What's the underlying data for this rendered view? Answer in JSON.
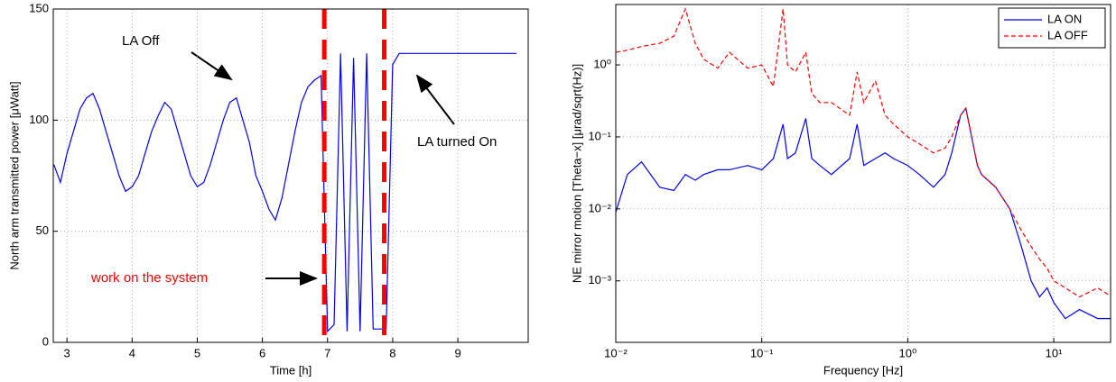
{
  "chart_data": [
    {
      "type": "line",
      "xlabel": "Time [h]",
      "ylabel": "North arm transmitted power [μWatt]",
      "xlim": [
        2.79,
        10.08
      ],
      "ylim": [
        0,
        150
      ],
      "xticks": [
        3,
        4,
        5,
        6,
        7,
        8,
        9
      ],
      "yticks": [
        0,
        50,
        100,
        150
      ],
      "grid": true,
      "color": "#0000ff",
      "x": [
        2.8,
        2.9,
        3.0,
        3.1,
        3.2,
        3.3,
        3.4,
        3.5,
        3.6,
        3.7,
        3.8,
        3.9,
        4.0,
        4.1,
        4.2,
        4.3,
        4.4,
        4.5,
        4.6,
        4.7,
        4.8,
        4.9,
        5.0,
        5.1,
        5.2,
        5.3,
        5.4,
        5.5,
        5.6,
        5.7,
        5.8,
        5.9,
        6.0,
        6.1,
        6.2,
        6.3,
        6.4,
        6.5,
        6.6,
        6.7,
        6.8,
        6.9,
        7.0,
        7.1,
        7.2,
        7.3,
        7.4,
        7.5,
        7.6,
        7.7,
        7.8,
        7.9,
        8.0,
        8.1,
        8.2,
        8.3,
        8.4,
        8.5,
        8.6,
        8.7,
        8.8,
        8.9,
        9.0,
        9.1,
        9.2,
        9.3,
        9.4,
        9.5,
        9.6,
        9.7,
        9.8,
        9.9
      ],
      "values": [
        80,
        72,
        85,
        95,
        105,
        110,
        112,
        105,
        95,
        85,
        75,
        68,
        70,
        75,
        85,
        95,
        102,
        108,
        105,
        95,
        85,
        75,
        70,
        72,
        80,
        90,
        100,
        108,
        110,
        100,
        90,
        75,
        68,
        60,
        55,
        65,
        80,
        95,
        108,
        115,
        118,
        120,
        5,
        8,
        130,
        5,
        128,
        5,
        130,
        6,
        6,
        6,
        125,
        130,
        130,
        130,
        130,
        130,
        130,
        130,
        130,
        130,
        130,
        130,
        130,
        130,
        130,
        130,
        130,
        130,
        130,
        130
      ],
      "vlines": [
        6.95,
        7.87
      ],
      "vline_color": "#ff0000",
      "annotations": [
        "LA Off",
        "LA turned On",
        "work on the system"
      ]
    },
    {
      "type": "line",
      "xlabel": "Frequency [Hz]",
      "ylabel": "NE mirror motion [Theta−x] [μrad/sqrt(Hz)]",
      "log_x": true,
      "log_y": true,
      "xlim": [
        0.01,
        24.5
      ],
      "ylim": [
        0.00014,
        6.9
      ],
      "xticks": [
        {
          "value": 0.01,
          "label": "10⁻²"
        },
        {
          "value": 0.1,
          "label": "10⁻¹"
        },
        {
          "value": 1,
          "label": "10⁰"
        },
        {
          "value": 10,
          "label": "10¹"
        }
      ],
      "yticks": [
        {
          "value": 0.001,
          "label": "10⁻³"
        },
        {
          "value": 0.01,
          "label": "10⁻²"
        },
        {
          "value": 0.1,
          "label": "10⁻¹"
        },
        {
          "value": 1,
          "label": "10⁰"
        }
      ],
      "grid": true,
      "legend": "top-right",
      "x": [
        0.01,
        0.012,
        0.015,
        0.02,
        0.025,
        0.03,
        0.035,
        0.04,
        0.05,
        0.06,
        0.08,
        0.1,
        0.12,
        0.14,
        0.15,
        0.17,
        0.2,
        0.22,
        0.25,
        0.3,
        0.4,
        0.45,
        0.5,
        0.6,
        0.7,
        0.8,
        1.0,
        1.2,
        1.5,
        1.8,
        2.0,
        2.3,
        2.5,
        2.8,
        3.0,
        3.2,
        4,
        5,
        6,
        7,
        8,
        9,
        10,
        12,
        15,
        20,
        25
      ],
      "series": [
        {
          "name": "LA ON",
          "color": "#0000ff",
          "dash": false,
          "values": [
            0.009,
            0.03,
            0.045,
            0.02,
            0.018,
            0.03,
            0.025,
            0.03,
            0.035,
            0.035,
            0.04,
            0.035,
            0.05,
            0.15,
            0.05,
            0.06,
            0.18,
            0.05,
            0.04,
            0.03,
            0.05,
            0.15,
            0.04,
            0.05,
            0.06,
            0.05,
            0.04,
            0.03,
            0.02,
            0.03,
            0.06,
            0.2,
            0.25,
            0.08,
            0.04,
            0.03,
            0.02,
            0.01,
            0.003,
            0.001,
            0.0006,
            0.0008,
            0.0005,
            0.0003,
            0.0004,
            0.0003,
            0.0003
          ]
        },
        {
          "name": "LA OFF",
          "color": "#ff0000",
          "dash": true,
          "values": [
            1.5,
            1.6,
            1.8,
            2.0,
            2.5,
            6.0,
            2.0,
            1.2,
            0.9,
            1.5,
            0.9,
            1.0,
            0.5,
            6.0,
            1.0,
            0.8,
            1.5,
            0.4,
            0.3,
            0.3,
            0.2,
            0.8,
            0.3,
            0.6,
            0.2,
            0.15,
            0.1,
            0.08,
            0.06,
            0.07,
            0.1,
            0.2,
            0.25,
            0.08,
            0.04,
            0.03,
            0.02,
            0.01,
            0.005,
            0.003,
            0.002,
            0.0015,
            0.001,
            0.0008,
            0.0006,
            0.0008,
            0.0006
          ]
        }
      ]
    }
  ]
}
